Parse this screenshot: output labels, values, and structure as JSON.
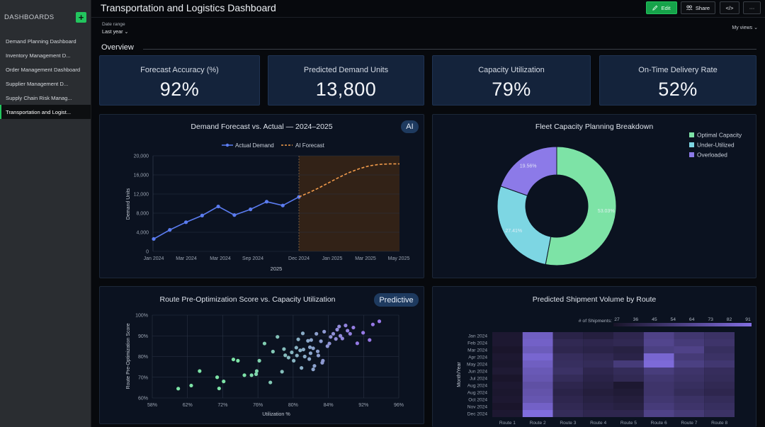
{
  "sidebar": {
    "title": "DASHBOARDS",
    "add_label": "+",
    "items": [
      {
        "label": "Demand Planning Dashboard"
      },
      {
        "label": "Inventory Management D..."
      },
      {
        "label": "Order Management Dashboard"
      },
      {
        "label": "Supplier Management D..."
      },
      {
        "label": "Supply Chain Risk Manag..."
      },
      {
        "label": "Transportation and Logist..."
      }
    ]
  },
  "header": {
    "title": "Transportation and Logistics Dashboard",
    "edit_label": "Edit",
    "share_label": "Share",
    "embed_label": "</>",
    "more_label": "···"
  },
  "filters": {
    "date_range_label": "Date range",
    "date_range_value": "Last year ⌄",
    "my_views": "My views ⌄"
  },
  "overview": {
    "label": "Overview"
  },
  "kpis": [
    {
      "label": "Forecast Accuracy (%)",
      "value": "92%"
    },
    {
      "label": "Predicted Demand Units",
      "value": "13,800"
    },
    {
      "label": "Capacity Utilization",
      "value": "79%"
    },
    {
      "label": "On-Time Delivery Rate",
      "value": "52%"
    }
  ],
  "colors": {
    "accent": "#22c55e",
    "actual": "#5b7cf0",
    "forecast": "#f29b4b",
    "optimal": "#7de3a6",
    "under": "#7dd6e3",
    "over": "#8c7ae8"
  },
  "chart_data": [
    {
      "type": "line",
      "title": "Demand Forecast vs. Actual — 2024–2025",
      "badge": "AI",
      "xlabel": "2025",
      "ylabel": "Demand Units",
      "legend": [
        "Actual Demand",
        "AI Forecast"
      ],
      "legend_position": "top",
      "x_ticks": [
        "Jan 2024",
        "Mar 2024",
        "Mar 2024",
        "Sep 2024",
        "Dec 2024",
        "Jan 2025",
        "Mar 2025",
        "May 2025"
      ],
      "y_ticks": [
        "0",
        "4,000",
        "8,000",
        "12,000",
        "16,000",
        "20,000"
      ],
      "ylim": [
        0,
        20000
      ],
      "series": [
        {
          "name": "Actual Demand",
          "values": [
            2600,
            4500,
            6100,
            7500,
            9400,
            7600,
            8800,
            10400,
            9600,
            11400
          ]
        },
        {
          "name": "AI Forecast",
          "values": [
            11400,
            12300,
            13300,
            14400,
            15500,
            16500,
            17300,
            17900,
            18200,
            18300,
            18300
          ]
        }
      ]
    },
    {
      "type": "pie",
      "title": "Fleet Capacity Planning Breakdown",
      "legend": [
        "Optimal Capacity",
        "Under-Utilized",
        "Overloaded"
      ],
      "legend_position": "top-right",
      "values": [
        53.03,
        27.41,
        19.56
      ],
      "labels": [
        "53.03%",
        "27.41%",
        "19.56%"
      ]
    },
    {
      "type": "scatter",
      "title": "Route Pre-Optimization Score vs. Capacity Utilization",
      "badge": "Predictive",
      "xlabel": "Utilization %",
      "ylabel": "Route Pre-Optimization Score",
      "x_ticks": [
        "58%",
        "62%",
        "72%",
        "76%",
        "80%",
        "84%",
        "92%",
        "96%"
      ],
      "y_ticks": [
        "60%",
        "70%",
        "80%",
        "90%",
        "100%"
      ],
      "xlim": [
        58,
        96
      ],
      "ylim": [
        60,
        100
      ],
      "points": [
        [
          62,
          64.5
        ],
        [
          64,
          66
        ],
        [
          65.3,
          73
        ],
        [
          68,
          70
        ],
        [
          68.3,
          64.6
        ],
        [
          69,
          68
        ],
        [
          70.5,
          78.6
        ],
        [
          71.2,
          78
        ],
        [
          72.2,
          71
        ],
        [
          73.3,
          71
        ],
        [
          74.1,
          73
        ],
        [
          74,
          71.5
        ],
        [
          74.5,
          78
        ],
        [
          75.3,
          86.3
        ],
        [
          76.2,
          67.5
        ],
        [
          76.6,
          82.4
        ],
        [
          77.3,
          89.5
        ],
        [
          78,
          72.7
        ],
        [
          78.3,
          83.6
        ],
        [
          78.5,
          80.6
        ],
        [
          79,
          79.5
        ],
        [
          79.5,
          82
        ],
        [
          79.8,
          78
        ],
        [
          80.3,
          80.5
        ],
        [
          80.5,
          88.3
        ],
        [
          81,
          74.5
        ],
        [
          81.3,
          83.4
        ],
        [
          81.5,
          80
        ],
        [
          82,
          87.6
        ],
        [
          82.5,
          88
        ],
        [
          82.4,
          81.6
        ],
        [
          82.8,
          84
        ],
        [
          83,
          75.5
        ],
        [
          83.3,
          91
        ],
        [
          83.6,
          80.5
        ],
        [
          84,
          87.4
        ],
        [
          84.2,
          77
        ],
        [
          84.5,
          92
        ],
        [
          85,
          85
        ],
        [
          85.3,
          86.3
        ],
        [
          85.5,
          89.5
        ],
        [
          85.9,
          91
        ],
        [
          86.3,
          88.5
        ],
        [
          86.5,
          93
        ],
        [
          86.8,
          94.5
        ],
        [
          87,
          90
        ],
        [
          87.3,
          88.7
        ],
        [
          87.8,
          95
        ],
        [
          88.1,
          92.5
        ],
        [
          88.5,
          91
        ],
        [
          89,
          94
        ],
        [
          89.6,
          86.4
        ],
        [
          90.5,
          91.5
        ],
        [
          91.5,
          88
        ],
        [
          92,
          95.5
        ],
        [
          93,
          97
        ],
        [
          80.2,
          84.3
        ],
        [
          82.2,
          78.8
        ],
        [
          84.3,
          78
        ],
        [
          83.5,
          82.5
        ],
        [
          82.3,
          84.5
        ],
        [
          81.2,
          91.2
        ],
        [
          80.8,
          83
        ],
        [
          82.8,
          73.8
        ]
      ]
    },
    {
      "type": "heatmap",
      "title": "Predicted Shipment Volume by Route",
      "legend_title": "# of Shipments:",
      "legend_ticks": [
        "27",
        "36",
        "45",
        "54",
        "64",
        "73",
        "82",
        "91"
      ],
      "ylabel": "Month/Year",
      "x": [
        "Route 1",
        "Route 2",
        "Route 3",
        "Route 4",
        "Route 5",
        "Route 6",
        "Route 7",
        "Route 8"
      ],
      "y": [
        "Jan 2024",
        "Feb 2024",
        "Mar 2024",
        "Apr 2024",
        "May 2024",
        "Jun 2024",
        "Jul 2024",
        "Aug 2024",
        "Aug 2024",
        "Oct 2024",
        "Nov 2024",
        "Dec 2024"
      ],
      "values": [
        [
          30,
          80,
          38,
          35,
          40,
          60,
          52,
          48
        ],
        [
          30,
          82,
          42,
          40,
          42,
          62,
          55,
          50
        ],
        [
          28,
          78,
          40,
          38,
          36,
          58,
          60,
          46
        ],
        [
          30,
          85,
          45,
          42,
          38,
          85,
          54,
          48
        ],
        [
          29,
          80,
          46,
          44,
          55,
          88,
          58,
          52
        ],
        [
          31,
          76,
          48,
          40,
          44,
          56,
          50,
          45
        ],
        [
          28,
          74,
          44,
          38,
          42,
          52,
          48,
          44
        ],
        [
          30,
          70,
          40,
          36,
          30,
          50,
          46,
          42
        ],
        [
          29,
          72,
          38,
          34,
          32,
          50,
          44,
          40
        ],
        [
          30,
          74,
          40,
          36,
          34,
          52,
          48,
          44
        ],
        [
          28,
          82,
          42,
          38,
          36,
          55,
          50,
          46
        ],
        [
          30,
          90,
          44,
          40,
          40,
          60,
          54,
          48
        ]
      ]
    }
  ]
}
